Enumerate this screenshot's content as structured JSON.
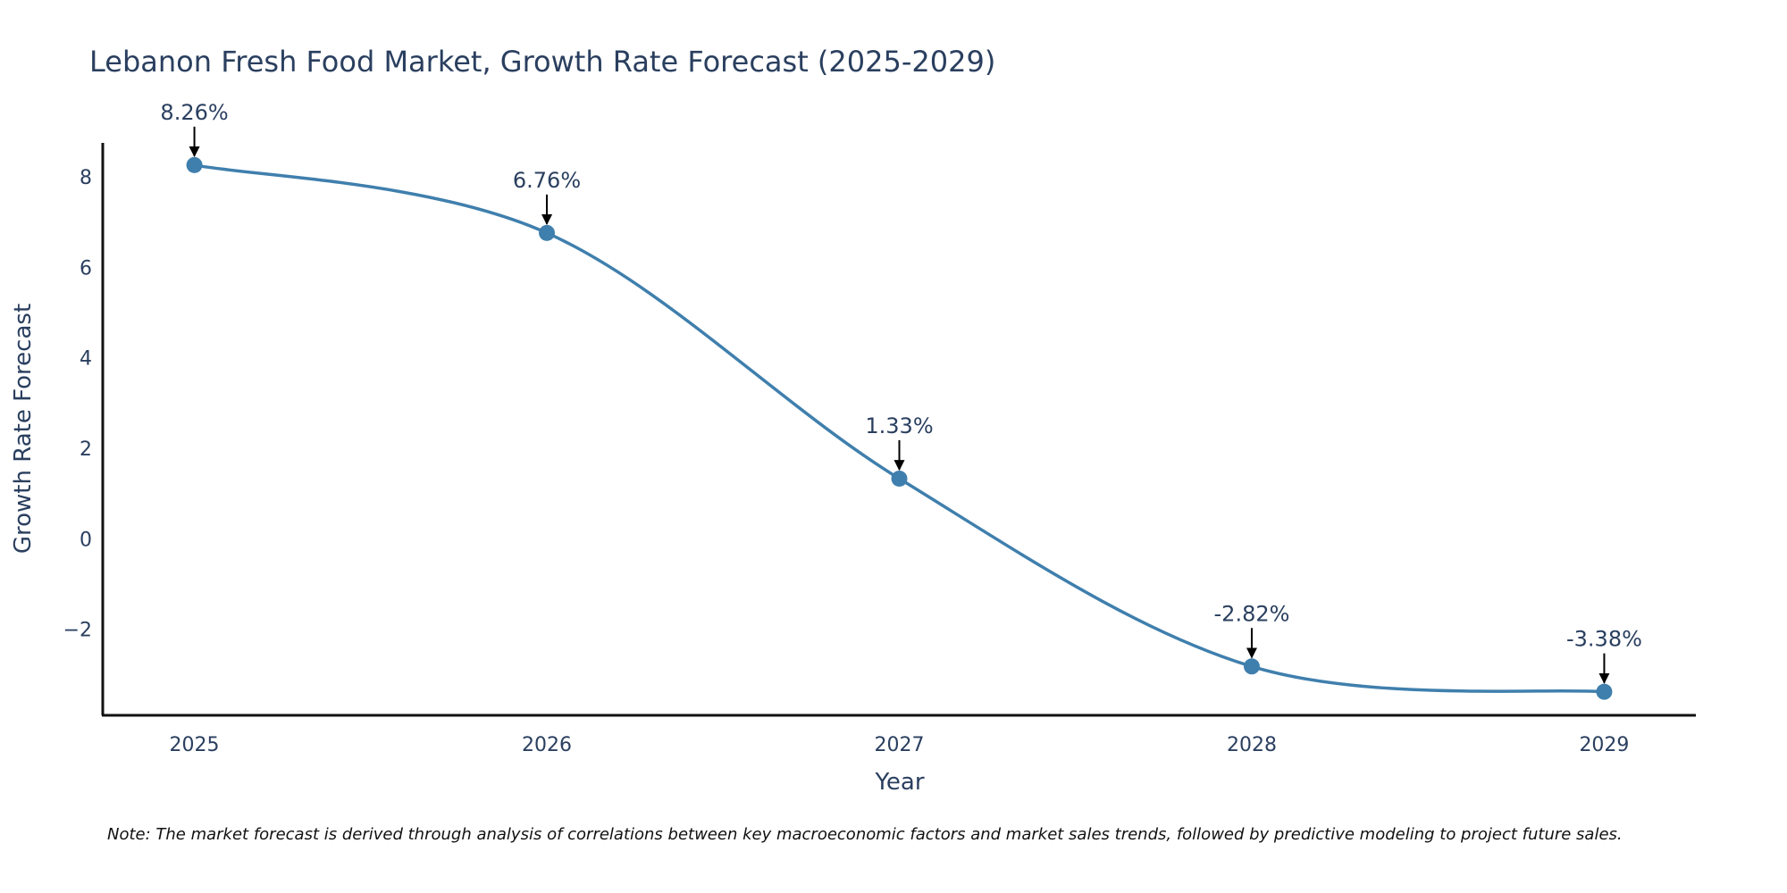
{
  "chart_data": {
    "type": "line",
    "title": "Lebanon Fresh Food Market, Growth Rate Forecast (2025-2029)",
    "xlabel": "Year",
    "ylabel": "Growth Rate Forecast",
    "categories": [
      "2025",
      "2026",
      "2027",
      "2028",
      "2029"
    ],
    "x": [
      2025,
      2026,
      2027,
      2028,
      2029
    ],
    "values": [
      8.26,
      6.76,
      1.33,
      -2.82,
      -3.38
    ],
    "data_labels": [
      "8.26%",
      "6.76%",
      "1.33%",
      "-2.82%",
      "-3.38%"
    ],
    "y_ticks": [
      -2,
      0,
      2,
      4,
      6,
      8
    ],
    "y_tick_labels": [
      "−2",
      "0",
      "2",
      "4",
      "6",
      "8"
    ],
    "ylim": [
      -3.9,
      8.75
    ],
    "xlim": [
      2024.74,
      2029.26
    ],
    "grid": false,
    "line_shape": "spline",
    "series_color": "#3f7fad",
    "note": "Note: The market forecast is derived through analysis of correlations between key macroeconomic factors and market sales trends, followed by predictive modeling to project future sales."
  }
}
